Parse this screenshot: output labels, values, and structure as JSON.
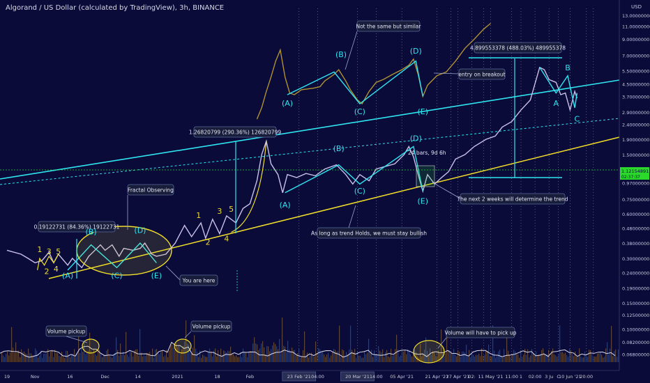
{
  "header": {
    "title": "Algorand / US Dollar (calculated by TradingView), 3h, BINANCE",
    "currency": "USD"
  },
  "colors": {
    "bg": "#0b0b3a",
    "cyan": "#2ee6f0",
    "yellow": "#f0de2a",
    "price": "#c9c0e8",
    "price_mirror": "#b09232",
    "volume": "#d8d8e8",
    "green": "#2bd92b",
    "label_bg": "#171d3a",
    "label_border": "#5b6b9b"
  },
  "chart_data": {
    "type": "line",
    "title": "Algorand / US Dollar (calculated by TradingView), 3h, BINANCE",
    "y_scale": "log",
    "y_ticks": [
      {
        "label": "13.00000000",
        "v": 13.0
      },
      {
        "label": "11.00000000",
        "v": 11.0
      },
      {
        "label": "9.00000000",
        "v": 9.0
      },
      {
        "label": "7.00000000",
        "v": 7.0
      },
      {
        "label": "5.50000000",
        "v": 5.5
      },
      {
        "label": "4.50000000",
        "v": 4.5
      },
      {
        "label": "3.70000000",
        "v": 3.7
      },
      {
        "label": "2.90000000",
        "v": 2.9
      },
      {
        "label": "2.40000000",
        "v": 2.4
      },
      {
        "label": "1.90000000",
        "v": 1.9
      },
      {
        "label": "1.50000000",
        "v": 1.5
      },
      {
        "label": "0.97000000",
        "v": 0.97
      },
      {
        "label": "0.75000000",
        "v": 0.75
      },
      {
        "label": "0.60000000",
        "v": 0.6
      },
      {
        "label": "0.48000000",
        "v": 0.48
      },
      {
        "label": "0.38000000",
        "v": 0.38
      },
      {
        "label": "0.30000000",
        "v": 0.3
      },
      {
        "label": "0.24000000",
        "v": 0.24
      },
      {
        "label": "0.19000000",
        "v": 0.19
      },
      {
        "label": "0.15000000",
        "v": 0.15
      },
      {
        "label": "0.12500000",
        "v": 0.125
      },
      {
        "label": "0.10000000",
        "v": 0.1
      },
      {
        "label": "0.08200000",
        "v": 0.082
      },
      {
        "label": "0.06800000",
        "v": 0.068
      }
    ],
    "current_price": {
      "label": "1.12154891",
      "sublabel": "02:37:37",
      "v": 1.12
    },
    "x_ticks": [
      {
        "label": "19",
        "d": 0
      },
      {
        "label": "Nov",
        "d": 12
      },
      {
        "label": "16",
        "d": 27
      },
      {
        "label": "Dec",
        "d": 42
      },
      {
        "label": "14",
        "d": 56
      },
      {
        "label": "2021",
        "d": 73
      },
      {
        "label": "18",
        "d": 90
      },
      {
        "label": "Feb",
        "d": 104
      },
      {
        "label": "23 Feb '21",
        "d": 125,
        "boxed": true
      },
      {
        "label": "04:00",
        "d": 133
      },
      {
        "label": "20 Mar '21",
        "d": 150,
        "boxed": true
      },
      {
        "label": "14:00",
        "d": 158
      },
      {
        "label": "05 Apr '21",
        "d": 169
      },
      {
        "label": "21 Apr '21",
        "d": 184
      },
      {
        "label": "27 Apr '21",
        "d": 193
      },
      {
        "label": "02:",
        "d": 199
      },
      {
        "label": "11 May '21",
        "d": 207
      },
      {
        "label": "11:00",
        "d": 216
      },
      {
        "label": "1",
        "d": 220
      },
      {
        "label": "02:00",
        "d": 226
      },
      {
        "label": "3 Ju",
        "d": 232
      },
      {
        "label": "C",
        "d": 236
      },
      {
        "label": "10 Jun '21",
        "d": 241
      },
      {
        "label": "20:00",
        "d": 248
      }
    ],
    "series": [
      {
        "key": "price",
        "points": [
          [
            0,
            0.34
          ],
          [
            6,
            0.32
          ],
          [
            9,
            0.3
          ],
          [
            12,
            0.28
          ],
          [
            15,
            0.29
          ],
          [
            18,
            0.33
          ],
          [
            20,
            0.28
          ],
          [
            22,
            0.32
          ],
          [
            26,
            0.27
          ],
          [
            28,
            0.3
          ],
          [
            32,
            0.26
          ],
          [
            35,
            0.31
          ],
          [
            40,
            0.37
          ],
          [
            42,
            0.34
          ],
          [
            45,
            0.37
          ],
          [
            48,
            0.31
          ],
          [
            50,
            0.35
          ],
          [
            54,
            0.34
          ],
          [
            57,
            0.35
          ],
          [
            59,
            0.38
          ],
          [
            62,
            0.32
          ],
          [
            64,
            0.31
          ],
          [
            68,
            0.32
          ],
          [
            72,
            0.38
          ],
          [
            76,
            0.5
          ],
          [
            79,
            0.42
          ],
          [
            83,
            0.52
          ],
          [
            85,
            0.41
          ],
          [
            88,
            0.55
          ],
          [
            91,
            0.44
          ],
          [
            94,
            0.58
          ],
          [
            98,
            0.52
          ],
          [
            101,
            0.65
          ],
          [
            104,
            0.7
          ],
          [
            107,
            1.0
          ],
          [
            109,
            1.5
          ],
          [
            111,
            1.85
          ],
          [
            113,
            1.3
          ],
          [
            116,
            1.1
          ],
          [
            118,
            0.83
          ],
          [
            120,
            1.1
          ],
          [
            124,
            1.05
          ],
          [
            128,
            1.12
          ],
          [
            132,
            1.08
          ],
          [
            136,
            1.2
          ],
          [
            141,
            1.28
          ],
          [
            145,
            1.1
          ],
          [
            148,
            0.95
          ],
          [
            151,
            1.1
          ],
          [
            155,
            1.0
          ],
          [
            158,
            1.2
          ],
          [
            162,
            1.25
          ],
          [
            166,
            1.3
          ],
          [
            170,
            1.5
          ],
          [
            172,
            1.7
          ],
          [
            174,
            1.45
          ],
          [
            176,
            1.1
          ],
          [
            178,
            0.85
          ],
          [
            180,
            1.1
          ],
          [
            183,
            0.95
          ],
          [
            186,
            1.05
          ],
          [
            189,
            1.15
          ],
          [
            192,
            1.4
          ],
          [
            196,
            1.5
          ],
          [
            200,
            1.7
          ],
          [
            205,
            1.9
          ],
          [
            209,
            2.0
          ],
          [
            212,
            2.3
          ],
          [
            216,
            2.5
          ],
          [
            220,
            3.0
          ],
          [
            224,
            3.5
          ],
          [
            228,
            5.8
          ],
          [
            230,
            5.6
          ],
          [
            232,
            4.8
          ],
          [
            235,
            4.6
          ],
          [
            237,
            3.8
          ],
          [
            239,
            3.9
          ],
          [
            241,
            3.0
          ],
          [
            243,
            4.0
          ],
          [
            244,
            3.6
          ]
        ]
      },
      {
        "key": "price_mirror",
        "points": [
          [
            107,
            2.6
          ],
          [
            109,
            3.1
          ],
          [
            111,
            4.0
          ],
          [
            113,
            5.0
          ],
          [
            115,
            6.4
          ],
          [
            117,
            7.6
          ],
          [
            119,
            5.0
          ],
          [
            121,
            3.9
          ],
          [
            123,
            3.8
          ],
          [
            126,
            4.1
          ],
          [
            131,
            4.2
          ],
          [
            134,
            4.3
          ],
          [
            136,
            4.7
          ],
          [
            140,
            5.2
          ],
          [
            142,
            5.6
          ],
          [
            145,
            4.7
          ],
          [
            147,
            4.1
          ],
          [
            150,
            3.5
          ],
          [
            152,
            3.3
          ],
          [
            155,
            4.0
          ],
          [
            158,
            4.6
          ],
          [
            161,
            4.8
          ],
          [
            165,
            5.2
          ],
          [
            169,
            5.6
          ],
          [
            172,
            6.0
          ],
          [
            174,
            6.6
          ],
          [
            176,
            5.2
          ],
          [
            178,
            3.7
          ],
          [
            180,
            4.4
          ],
          [
            184,
            5.1
          ],
          [
            188,
            5.4
          ],
          [
            192,
            6.4
          ],
          [
            196,
            7.8
          ],
          [
            200,
            9.0
          ],
          [
            204,
            10.5
          ],
          [
            207,
            11.5
          ]
        ]
      }
    ]
  },
  "annotations": {
    "fractal_observing": "Fractal Observing",
    "you_are_here": "You are here",
    "not_same": "Not the same but similar",
    "entry_breakout": "entry on breakout",
    "next_two_weeks": "The next 2 weeks will determine the trend",
    "as_long_as": "As long as trend Holds, we must stay bullish",
    "volume_pickup_1": "Volume pickup",
    "volume_pickup_2": "Volume pickup",
    "volume_will": "Volume will have to pick up",
    "measure_1": "0.19122731 (84.36%) 19122731",
    "measure_2": "1.26820799 (290.36%) 126820799",
    "measure_3": "4.899553378 (488.03%) 489955378",
    "bars_days": "24 bars, 9d 6h"
  },
  "wave_labels": [
    {
      "t": "(A)",
      "d": 26,
      "v": 0.22,
      "c": "cyan"
    },
    {
      "t": "(B)",
      "d": 36,
      "v": 0.435,
      "c": "cyan"
    },
    {
      "t": "(C)",
      "d": 47,
      "v": 0.22,
      "c": "cyan"
    },
    {
      "t": "(D)",
      "d": 57,
      "v": 0.445,
      "c": "cyan"
    },
    {
      "t": "(E)",
      "d": 64,
      "v": 0.22,
      "c": "cyan"
    },
    {
      "t": "(A)",
      "d": 120,
      "v": 3.2,
      "c": "cyan"
    },
    {
      "t": "(B)",
      "d": 143,
      "v": 6.8,
      "c": "cyan"
    },
    {
      "t": "(C)",
      "d": 151,
      "v": 2.8,
      "c": "cyan"
    },
    {
      "t": "(D)",
      "d": 175,
      "v": 7.2,
      "c": "cyan"
    },
    {
      "t": "(E)",
      "d": 178,
      "v": 2.8,
      "c": "cyan"
    },
    {
      "t": "(A)",
      "d": 119,
      "v": 0.66,
      "c": "cyan"
    },
    {
      "t": "(B)",
      "d": 142,
      "v": 1.58,
      "c": "cyan"
    },
    {
      "t": "(C)",
      "d": 151,
      "v": 0.82,
      "c": "cyan"
    },
    {
      "t": "(D)",
      "d": 175,
      "v": 1.85,
      "c": "cyan"
    },
    {
      "t": "(E)",
      "d": 178,
      "v": 0.7,
      "c": "cyan"
    },
    {
      "t": "A",
      "d": 235,
      "v": 3.2,
      "c": "cyan"
    },
    {
      "t": "B",
      "d": 240,
      "v": 5.55,
      "c": "cyan"
    },
    {
      "t": "C",
      "d": 244,
      "v": 2.5,
      "c": "cyan"
    },
    {
      "t": "1",
      "d": 14,
      "v": 0.33,
      "c": "yellow"
    },
    {
      "t": "3",
      "d": 18,
      "v": 0.32,
      "c": "yellow"
    },
    {
      "t": "5",
      "d": 22,
      "v": 0.32,
      "c": "yellow"
    },
    {
      "t": "2",
      "d": 17,
      "v": 0.235,
      "c": "yellow"
    },
    {
      "t": "4",
      "d": 21,
      "v": 0.245,
      "c": "yellow"
    },
    {
      "t": "1",
      "d": 82,
      "v": 0.56,
      "c": "yellow"
    },
    {
      "t": "3",
      "d": 91,
      "v": 0.6,
      "c": "yellow"
    },
    {
      "t": "5",
      "d": 96,
      "v": 0.62,
      "c": "yellow"
    },
    {
      "t": "2",
      "d": 86,
      "v": 0.37,
      "c": "yellow"
    },
    {
      "t": "4",
      "d": 94,
      "v": 0.39,
      "c": "yellow"
    }
  ]
}
